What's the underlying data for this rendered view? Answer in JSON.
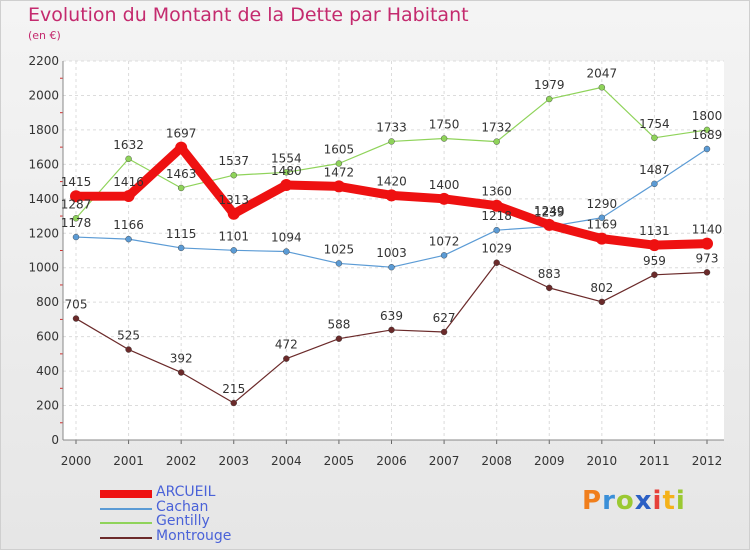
{
  "title": "Evolution du Montant de la Dette par Habitant",
  "subtitle": "(en €)",
  "logo": {
    "letters": [
      "P",
      "r",
      "o",
      "x",
      "i",
      "t",
      "i"
    ],
    "colors": [
      "#f07f1d",
      "#3a8fd8",
      "#9bc932",
      "#2b5fc4",
      "#e6403a",
      "#f4b21a",
      "#9bc932"
    ]
  },
  "chart_data": {
    "type": "line",
    "title": "Evolution du Montant de la Dette par Habitant",
    "ylabel": "(en €)",
    "x": [
      "2000",
      "2001",
      "2002",
      "2003",
      "2004",
      "2005",
      "2006",
      "2007",
      "2008",
      "2009",
      "2010",
      "2011",
      "2012"
    ],
    "ylim": [
      0,
      2200
    ],
    "yticks": [
      "0",
      "200",
      "400",
      "600",
      "800",
      "1000",
      "1200",
      "1400",
      "1600",
      "1800",
      "2000",
      "2200"
    ],
    "ytick_values": [
      0,
      200,
      400,
      600,
      800,
      1000,
      1200,
      1400,
      1600,
      1800,
      2000,
      2200
    ],
    "grid": true,
    "legend": "bottom-left",
    "series": [
      {
        "name": "ARCUEIL",
        "color": "#ee1111",
        "values": [
          1415,
          1416,
          1697,
          1313,
          1480,
          1472,
          1420,
          1400,
          1360,
          1249,
          1169,
          1131,
          1140
        ]
      },
      {
        "name": "Cachan",
        "color": "#5b9bd5",
        "values": [
          1178,
          1166,
          1115,
          1101,
          1094,
          1025,
          1003,
          1072,
          1218,
          1239,
          1290,
          1487,
          1689
        ]
      },
      {
        "name": "Gentilly",
        "color": "#8fd35a",
        "values": [
          1287,
          1632,
          1463,
          1537,
          1554,
          1605,
          1733,
          1750,
          1732,
          1979,
          2047,
          1754,
          1800
        ]
      },
      {
        "name": "Montrouge",
        "color": "#6b2a2a",
        "values": [
          705,
          525,
          392,
          215,
          472,
          588,
          639,
          627,
          1029,
          883,
          802,
          959,
          973
        ]
      }
    ]
  }
}
